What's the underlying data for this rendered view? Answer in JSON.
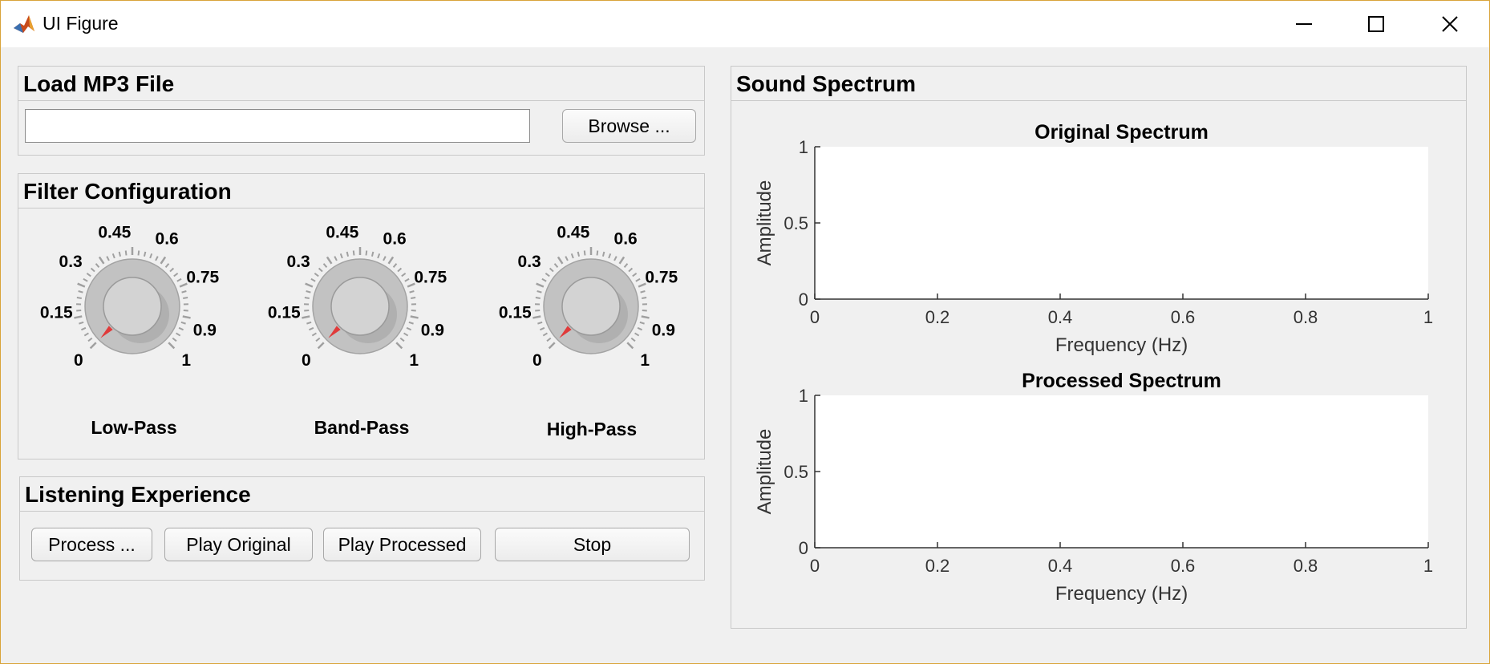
{
  "window": {
    "title": "UI Figure"
  },
  "load_panel": {
    "title": "Load MP3 File",
    "file_value": "",
    "browse_label": "Browse ..."
  },
  "filter_panel": {
    "title": "Filter Configuration",
    "knobs": [
      {
        "label": "Low-Pass",
        "value": 0
      },
      {
        "label": "Band-Pass",
        "value": 0
      },
      {
        "label": "High-Pass",
        "value": 0
      }
    ],
    "tick_labels": [
      "0",
      "0.15",
      "0.3",
      "0.45",
      "0.6",
      "0.75",
      "0.9",
      "1"
    ]
  },
  "listening_panel": {
    "title": "Listening Experience",
    "buttons": [
      "Process ...",
      "Play Original",
      "Play Processed",
      "Stop"
    ]
  },
  "spectrum_panel": {
    "title": "Sound Spectrum"
  },
  "chart_data": [
    {
      "type": "line",
      "title": "Original Spectrum",
      "xlabel": "Frequency (Hz)",
      "ylabel": "Amplitude",
      "xlim": [
        0,
        1
      ],
      "ylim": [
        0,
        1
      ],
      "xticks": [
        "0",
        "0.2",
        "0.4",
        "0.6",
        "0.8",
        "1"
      ],
      "yticks": [
        "0",
        "0.5",
        "1"
      ],
      "series": []
    },
    {
      "type": "line",
      "title": "Processed Spectrum",
      "xlabel": "Frequency (Hz)",
      "ylabel": "Amplitude",
      "xlim": [
        0,
        1
      ],
      "ylim": [
        0,
        1
      ],
      "xticks": [
        "0",
        "0.2",
        "0.4",
        "0.6",
        "0.8",
        "1"
      ],
      "yticks": [
        "0",
        "0.5",
        "1"
      ],
      "series": []
    }
  ],
  "colors": {
    "knob_indicator": "#e03a3a",
    "window_border": "#d9a43a"
  }
}
